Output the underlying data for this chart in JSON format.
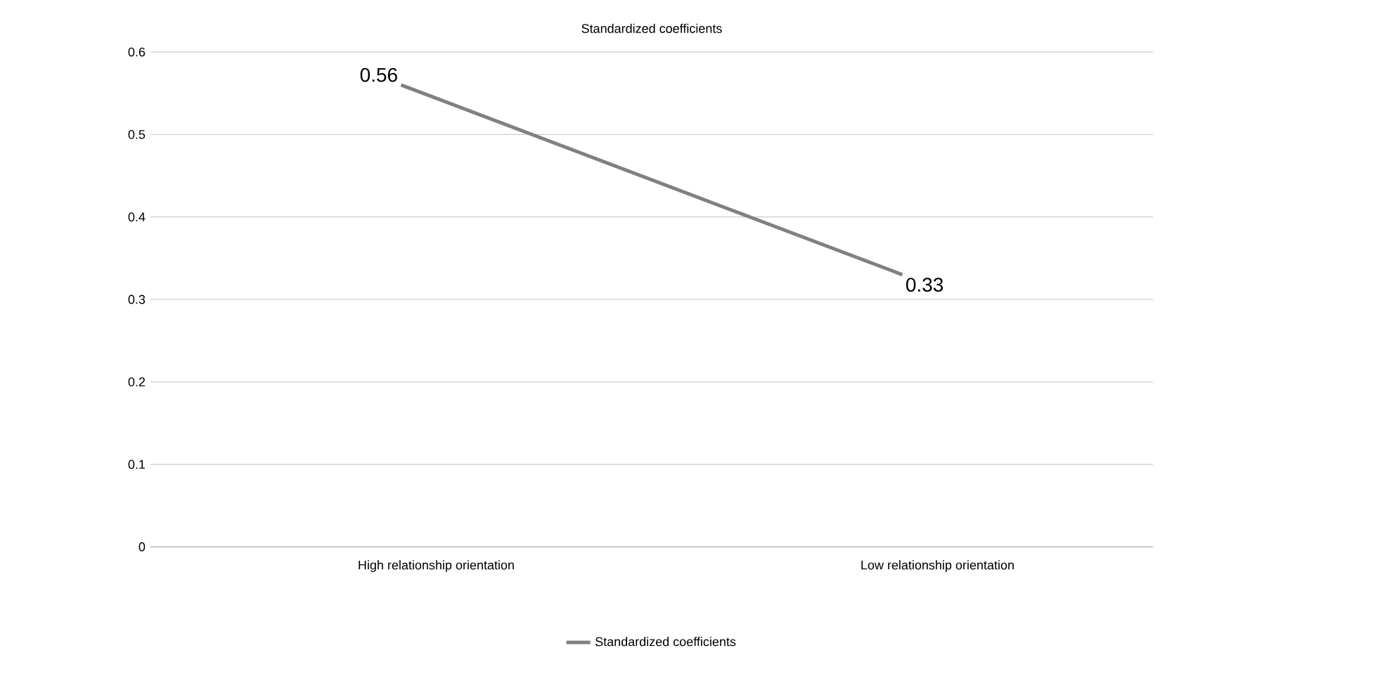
{
  "chart_data": {
    "type": "line",
    "title": "Standardized coefficients",
    "categories": [
      "High relationship orientation",
      "Low relationship orientation"
    ],
    "series": [
      {
        "name": "Standardized coefficients",
        "color": "#808080",
        "values": [
          0.56,
          0.33
        ]
      }
    ],
    "ylim": [
      0,
      0.6
    ],
    "yticks": [
      0,
      0.1,
      0.2,
      0.3,
      0.4,
      0.5,
      0.6
    ],
    "grid": "y",
    "legend": "bottom",
    "data_labels": true,
    "marker": "none",
    "line_style": "solid"
  }
}
